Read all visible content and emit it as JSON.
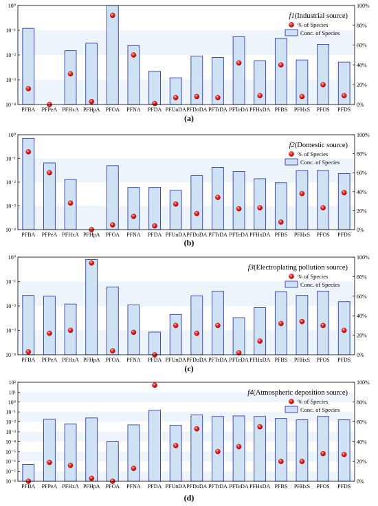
{
  "categories": [
    "PFBA",
    "PFPeA",
    "PFHxA",
    "PFHpA",
    "PFOA",
    "PFNA",
    "PFDA",
    "PFUnDA",
    "PFDoDA",
    "PFTrDA",
    "PFTeDA",
    "PFHxDA",
    "PFBS",
    "PFHxS",
    "PFOS",
    "PFDS"
  ],
  "legend": {
    "point_label": "% of Species",
    "bar_label": "Conc. of Species"
  },
  "colors": {
    "bar_fill": "#cfe2f3",
    "bar_stroke": "#2f3bb0",
    "point": "#e00000",
    "band": "#eef4fb"
  },
  "chart_data": [
    {
      "type": "bar",
      "panel_label": "(a)",
      "title_prefix": "f1",
      "title_rest": "(Industrial source)",
      "yscale_left": "log",
      "ylim_left_exp": [
        -4,
        0
      ],
      "ytick_labels_left": [
        "10⁻⁴",
        "10⁻³",
        "10⁻²",
        "10⁻¹",
        "10⁰"
      ],
      "ylim_right": [
        0,
        100
      ],
      "ytick_labels_right": [
        "0%",
        "20%",
        "40%",
        "60%",
        "80%",
        "100%"
      ],
      "conc": [
        0.12,
        0.0001,
        0.015,
        0.03,
        1.3,
        0.024,
        0.0022,
        0.0012,
        0.009,
        0.008,
        0.055,
        0.0058,
        0.047,
        0.0063,
        0.027,
        0.0052
      ],
      "percent": [
        16,
        0,
        31,
        3,
        90,
        50,
        1,
        7,
        8,
        7,
        42,
        9,
        40,
        8,
        20,
        9
      ]
    },
    {
      "type": "bar",
      "panel_label": "(b)",
      "title_prefix": "f2",
      "title_rest": "(Domestic source)",
      "yscale_left": "log",
      "ylim_left_exp": [
        -4,
        0
      ],
      "ytick_labels_left": [
        "10⁻⁴",
        "10⁻³",
        "10⁻²",
        "10⁻¹",
        "10⁰"
      ],
      "ylim_right": [
        0,
        100
      ],
      "ytick_labels_right": [
        "0%",
        "20%",
        "40%",
        "60%",
        "80%",
        "100%"
      ],
      "conc": [
        0.7,
        0.065,
        0.013,
        0.0001,
        0.05,
        0.006,
        0.006,
        0.0045,
        0.019,
        0.042,
        0.028,
        0.014,
        0.0095,
        0.031,
        0.031,
        0.023
      ],
      "percent": [
        82,
        60,
        28,
        0,
        5,
        14,
        4,
        27,
        17,
        34,
        22,
        23,
        8,
        38,
        23,
        39
      ]
    },
    {
      "type": "bar",
      "panel_label": "(c)",
      "title_prefix": "f3",
      "title_rest": "(Electroplating pollution source)",
      "yscale_left": "log",
      "ylim_left_exp": [
        -4,
        0
      ],
      "ytick_labels_left": [
        "10⁻⁴",
        "10⁻³",
        "10⁻²",
        "10⁻¹",
        "10⁰"
      ],
      "ylim_right": [
        0,
        100
      ],
      "ytick_labels_right": [
        "0%",
        "20%",
        "40%",
        "60%",
        "80%",
        "100%"
      ],
      "conc": [
        0.027,
        0.025,
        0.012,
        0.8,
        0.06,
        0.011,
        0.00085,
        0.0045,
        0.026,
        0.04,
        0.0033,
        0.0085,
        0.038,
        0.027,
        0.04,
        0.015
      ],
      "percent": [
        3,
        22,
        25,
        94,
        4,
        23,
        0,
        30,
        22,
        30,
        2,
        14,
        32,
        34,
        30,
        25
      ]
    },
    {
      "type": "bar",
      "panel_label": "(d)",
      "title_prefix": "f4",
      "title_rest": "(Atmospheric deposition source)",
      "yscale_left": "log",
      "ylim_left_exp": [
        -8,
        2
      ],
      "ytick_labels_left": [
        "10⁻⁸",
        "10⁻⁷",
        "10⁻⁶",
        "10⁻⁵",
        "10⁻⁴",
        "10⁻³",
        "10⁻²",
        "10⁻¹",
        "10⁰",
        "10¹",
        "10²"
      ],
      "ylim_right": [
        0,
        100
      ],
      "ytick_labels_right": [
        "0%",
        "20%",
        "40%",
        "60%",
        "80%",
        "100%"
      ],
      "conc": [
        5e-07,
        0.018,
        0.006,
        0.025,
        0.0001,
        0.005,
        0.15,
        0.0045,
        0.05,
        0.035,
        0.04,
        0.035,
        0.022,
        0.016,
        0.035,
        0.016
      ],
      "percent": [
        0,
        19,
        16,
        3,
        0,
        13,
        97,
        36,
        53,
        30,
        35,
        55,
        20,
        20,
        28,
        27
      ]
    }
  ]
}
